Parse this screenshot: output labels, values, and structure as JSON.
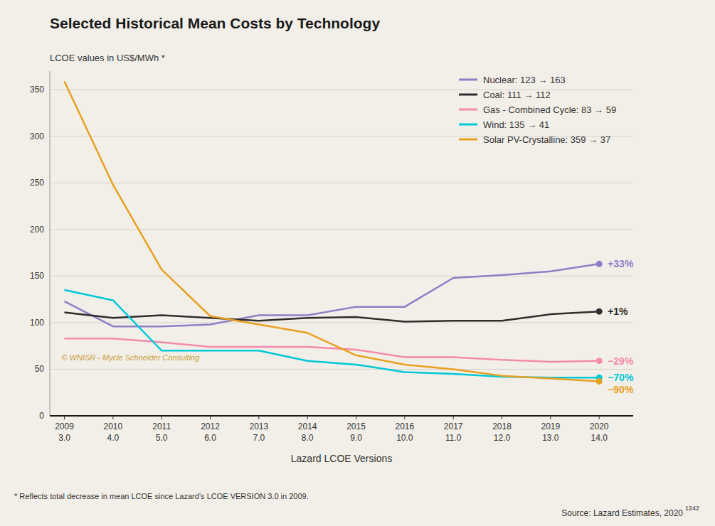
{
  "chart_data": {
    "type": "line",
    "title": "Selected Historical Mean Costs by Technology",
    "y_label": "LCOE values in US$/MWh *",
    "x_label": "Lazard LCOE Versions",
    "categories": [
      2009,
      2010,
      2011,
      2012,
      2013,
      2014,
      2015,
      2016,
      2017,
      2018,
      2019,
      2020
    ],
    "versions": [
      "3.0",
      "4.0",
      "5.0",
      "6.0",
      "7.0",
      "8.0",
      "9.0",
      "10.0",
      "11.0",
      "12.0",
      "13.0",
      "14.0"
    ],
    "series": [
      {
        "name": "Nuclear: 123 → 163",
        "color": "#8b7fc7",
        "annotation": "+33%",
        "values": [
          123,
          96,
          96,
          98,
          108,
          108,
          117,
          117,
          148,
          151,
          155,
          163
        ]
      },
      {
        "name": "Coal: 111 → 112",
        "color": "#2d2d2d",
        "annotation": "+1%",
        "values": [
          111,
          105,
          108,
          105,
          102,
          105,
          106,
          101,
          102,
          102,
          109,
          112
        ]
      },
      {
        "name": "Gas - Combined Cycle: 83 → 59",
        "color": "#f48bab",
        "annotation": "−29%",
        "values": [
          83,
          83,
          79,
          74,
          74,
          74,
          71,
          63,
          63,
          60,
          58,
          59
        ]
      },
      {
        "name": "Wind: 135 → 41",
        "color": "#00c8d7",
        "annotation": "−70%",
        "values": [
          135,
          124,
          70,
          70,
          70,
          59,
          55,
          47,
          45,
          42,
          41,
          41
        ]
      },
      {
        "name": "Solar PV-Crystalline: 359 → 37",
        "color": "#e8a020",
        "annotation": "−90%",
        "values": [
          359,
          248,
          157,
          107,
          98,
          89,
          65,
          55,
          50,
          43,
          40,
          37
        ]
      }
    ],
    "ylim": [
      0,
      370
    ],
    "yticks": [
      0,
      50,
      100,
      150,
      200,
      250,
      300,
      350
    ],
    "grid": true,
    "legend": "upper right",
    "watermark": "© WNISR - Mycle Schneider Consulting",
    "footnote": "* Reflects total decrease in mean LCOE since Lazard’s  LCOE VERSION 3.0 in 2009.",
    "source": "Source: Lazard Estimates, 2020",
    "source_note": "1242"
  }
}
